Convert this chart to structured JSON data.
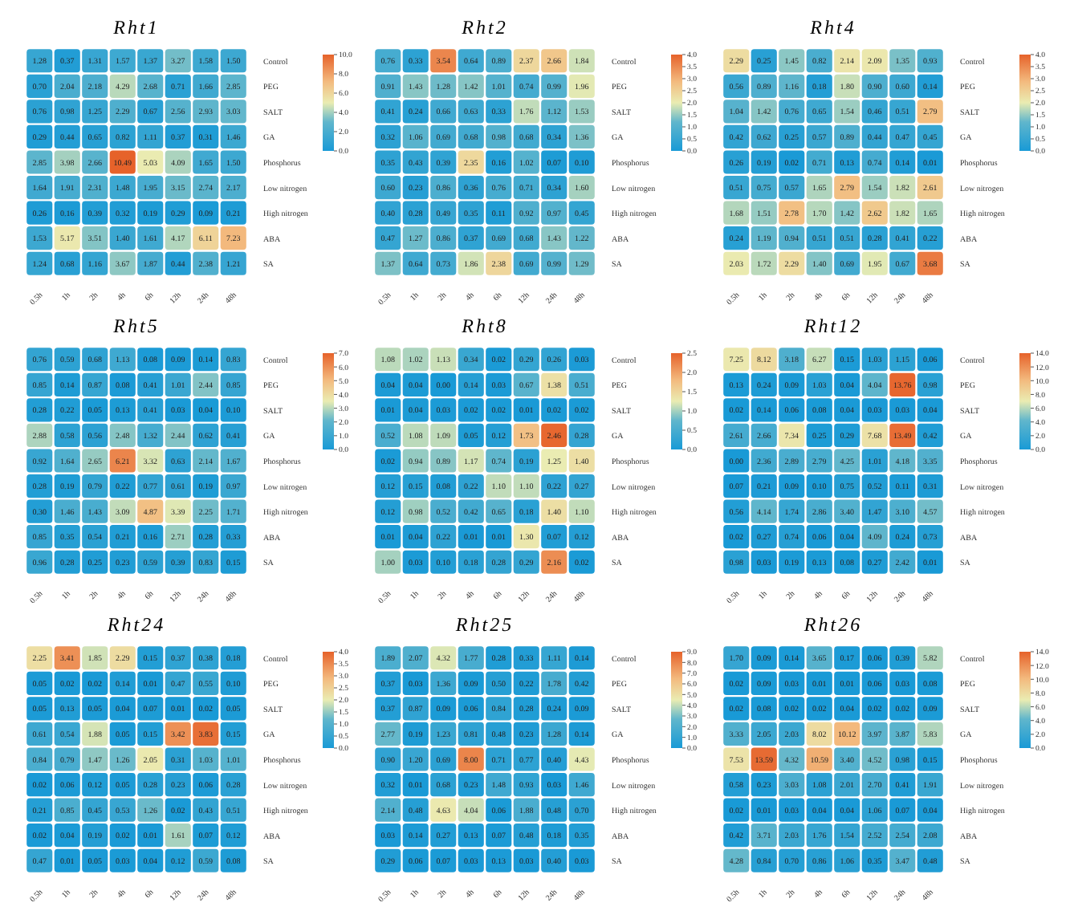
{
  "chart_data": [
    {
      "type": "heatmap",
      "title": "Rht1",
      "categories": [
        "0.5h",
        "1h",
        "2h",
        "4h",
        "6h",
        "12h",
        "24h",
        "48h"
      ],
      "y_categories": [
        "Control",
        "PEG",
        "SALT",
        "GA",
        "Phosphorus",
        "Low nitrogen",
        "High nitrogen",
        "ABA",
        "SA"
      ],
      "cells": [
        [
          1.28,
          0.37,
          1.31,
          1.57,
          1.37,
          3.27,
          1.58,
          1.5
        ],
        [
          0.7,
          2.04,
          2.18,
          4.29,
          2.68,
          0.71,
          1.66,
          2.85
        ],
        [
          0.76,
          0.98,
          1.25,
          2.29,
          0.67,
          2.56,
          2.93,
          3.03
        ],
        [
          0.29,
          0.44,
          0.65,
          0.82,
          1.11,
          0.37,
          0.31,
          1.46
        ],
        [
          2.85,
          3.98,
          2.66,
          10.49,
          5.03,
          4.09,
          1.65,
          1.5
        ],
        [
          1.64,
          1.91,
          2.31,
          1.48,
          1.95,
          3.15,
          2.74,
          2.17
        ],
        [
          0.26,
          0.16,
          0.39,
          0.32,
          0.19,
          0.29,
          0.09,
          0.21
        ],
        [
          1.53,
          5.17,
          3.51,
          1.4,
          1.61,
          4.17,
          6.11,
          7.23
        ],
        [
          1.24,
          0.68,
          1.16,
          3.67,
          1.87,
          0.44,
          2.38,
          1.21
        ]
      ],
      "cell_labels": [
        [
          "1.28",
          "0.37",
          "1.31",
          "1.57",
          "1.37",
          "3.27",
          "1.58",
          "1.50"
        ],
        [
          "0.70",
          "2.04",
          "2.18",
          "4.29",
          "2.68",
          "0.71",
          "1.66",
          "2.85"
        ],
        [
          "0.76",
          "0.98",
          "1.25",
          "2.29",
          "0.67",
          "2.56",
          "2.93",
          "3.03"
        ],
        [
          "0.29",
          "0.44",
          "0.65",
          "0.82",
          "1.11",
          "0.37",
          "0.31",
          "1.46"
        ],
        [
          "2.85",
          "3.98",
          "2.66",
          "10.49",
          "5.03",
          "4.09",
          "1.65",
          "1.50"
        ],
        [
          "1.64",
          "1.91",
          "2.31",
          "1.48",
          "1.95",
          "3.15",
          "2.74",
          "2.17"
        ],
        [
          "0.26",
          "0.16",
          "0.39",
          "0.32",
          "0.19",
          "0.29",
          "0.09",
          "0.21"
        ],
        [
          "1.53",
          "5.17",
          "3.51",
          "1.40",
          "1.61",
          "4.17",
          "6.11",
          "7.23"
        ],
        [
          "1.24",
          "0.68",
          "1.16",
          "3.67",
          "1.87",
          "0.44",
          "2.38",
          "1.21"
        ]
      ],
      "clim": [
        0,
        10
      ],
      "cticks": [
        {
          "value": 0,
          "label": "0.0"
        },
        {
          "value": 2,
          "label": "2.0"
        },
        {
          "value": 4,
          "label": "4.0"
        },
        {
          "value": 6,
          "label": "6.0"
        },
        {
          "value": 8,
          "label": "8.0"
        },
        {
          "value": 10,
          "label": "10.0"
        }
      ]
    },
    {
      "type": "heatmap",
      "title": "Rht2",
      "categories": [
        "0.5h",
        "1h",
        "2h",
        "4h",
        "6h",
        "12h",
        "24h",
        "48h"
      ],
      "y_categories": [
        "Control",
        "PEG",
        "SALT",
        "GA",
        "Phosphorus",
        "Low nitrogen",
        "High nitrogen",
        "ABA",
        "SA"
      ],
      "cells": [
        [
          0.76,
          0.33,
          3.54,
          0.64,
          0.89,
          2.37,
          2.66,
          1.84
        ],
        [
          0.91,
          1.43,
          1.28,
          1.42,
          1.01,
          0.74,
          0.99,
          1.96
        ],
        [
          0.41,
          0.24,
          0.66,
          0.63,
          0.33,
          1.76,
          1.12,
          1.53
        ],
        [
          0.32,
          1.06,
          0.69,
          0.68,
          0.98,
          0.68,
          0.34,
          1.36
        ],
        [
          0.35,
          0.43,
          0.39,
          2.35,
          0.16,
          1.02,
          0.07,
          0.1
        ],
        [
          0.6,
          0.23,
          0.86,
          0.36,
          0.76,
          0.71,
          0.34,
          1.6
        ],
        [
          0.4,
          0.28,
          0.49,
          0.35,
          0.11,
          0.92,
          0.97,
          0.45
        ],
        [
          0.47,
          1.27,
          0.86,
          0.37,
          0.69,
          0.68,
          1.43,
          1.22
        ],
        [
          1.37,
          0.64,
          0.73,
          1.86,
          2.38,
          0.69,
          0.99,
          1.29
        ]
      ],
      "cell_labels": [
        [
          "0.76",
          "0.33",
          "3.54",
          "0.64",
          "0.89",
          "2.37",
          "2.66",
          "1.84"
        ],
        [
          "0.91",
          "1.43",
          "1.28",
          "1.42",
          "1.01",
          "0.74",
          "0.99",
          "1.96"
        ],
        [
          "0.41",
          "0.24",
          "0.66",
          "0.63",
          "0.33",
          "1.76",
          "1.12",
          "1.53"
        ],
        [
          "0.32",
          "1.06",
          "0.69",
          "0.68",
          "0.98",
          "0.68",
          "0.34",
          "1.36"
        ],
        [
          "0.35",
          "0.43",
          "0.39",
          "2.35",
          "0.16",
          "1.02",
          "0.07",
          "0.10"
        ],
        [
          "0.60",
          "0.23",
          "0.86",
          "0.36",
          "0.76",
          "0.71",
          "0.34",
          "1.60"
        ],
        [
          "0.40",
          "0.28",
          "0.49",
          "0.35",
          "0.11",
          "0.92",
          "0.97",
          "0.45"
        ],
        [
          "0.47",
          "1.27",
          "0.86",
          "0.37",
          "0.69",
          "0.68",
          "1.43",
          "1.22"
        ],
        [
          "1.37",
          "0.64",
          "0.73",
          "1.86",
          "2.38",
          "0.69",
          "0.99",
          "1.29"
        ]
      ],
      "clim": [
        0,
        4
      ],
      "cticks": [
        {
          "value": 0,
          "label": "0.0"
        },
        {
          "value": 0.5,
          "label": "0.5"
        },
        {
          "value": 1,
          "label": "1.0"
        },
        {
          "value": 1.5,
          "label": "1.5"
        },
        {
          "value": 2,
          "label": "2.0"
        },
        {
          "value": 2.5,
          "label": "2.5"
        },
        {
          "value": 3,
          "label": "3.0"
        },
        {
          "value": 3.5,
          "label": "3.5"
        },
        {
          "value": 4,
          "label": "4.0"
        }
      ]
    },
    {
      "type": "heatmap",
      "title": "Rht4",
      "categories": [
        "0.5h",
        "1h",
        "2h",
        "4h",
        "6h",
        "12h",
        "24h",
        "48h"
      ],
      "y_categories": [
        "Control",
        "PEG",
        "SALT",
        "GA",
        "Phosphorus",
        "Low nitrogen",
        "High nitrogen",
        "ABA",
        "SA"
      ],
      "cells": [
        [
          2.29,
          0.25,
          1.45,
          0.82,
          2.14,
          2.09,
          1.35,
          0.93
        ],
        [
          0.56,
          0.89,
          1.16,
          0.18,
          1.8,
          0.9,
          0.6,
          0.14
        ],
        [
          1.04,
          1.42,
          0.76,
          0.65,
          1.54,
          0.46,
          0.51,
          2.79
        ],
        [
          0.42,
          0.62,
          0.25,
          0.57,
          0.89,
          0.44,
          0.47,
          0.45
        ],
        [
          0.26,
          0.19,
          0.02,
          0.71,
          0.13,
          0.74,
          0.14,
          0.01
        ],
        [
          0.51,
          0.75,
          0.57,
          1.65,
          2.79,
          1.54,
          1.82,
          2.61
        ],
        [
          1.68,
          1.51,
          2.78,
          1.7,
          1.42,
          2.62,
          1.82,
          1.65
        ],
        [
          0.24,
          1.19,
          0.94,
          0.51,
          0.51,
          0.28,
          0.41,
          0.22
        ],
        [
          2.03,
          1.72,
          2.29,
          1.4,
          0.69,
          1.95,
          0.67,
          3.68
        ]
      ],
      "cell_labels": [
        [
          "2.29",
          "0.25",
          "1.45",
          "0.82",
          "2.14",
          "2.09",
          "1.35",
          "0.93"
        ],
        [
          "0.56",
          "0.89",
          "1.16",
          "0.18",
          "1.80",
          "0.90",
          "0.60",
          "0.14"
        ],
        [
          "1.04",
          "1.42",
          "0.76",
          "0.65",
          "1.54",
          "0.46",
          "0.51",
          "2.79"
        ],
        [
          "0.42",
          "0.62",
          "0.25",
          "0.57",
          "0.89",
          "0.44",
          "0.47",
          "0.45"
        ],
        [
          "0.26",
          "0.19",
          "0.02",
          "0.71",
          "0.13",
          "0.74",
          "0.14",
          "0.01"
        ],
        [
          "0.51",
          "0.75",
          "0.57",
          "1.65",
          "2.79",
          "1.54",
          "1.82",
          "2.61"
        ],
        [
          "1.68",
          "1.51",
          "2.78",
          "1.70",
          "1.42",
          "2.62",
          "1.82",
          "1.65"
        ],
        [
          "0.24",
          "1.19",
          "0.94",
          "0.51",
          "0.51",
          "0.28",
          "0.41",
          "0.22"
        ],
        [
          "2.03",
          "1.72",
          "2.29",
          "1.40",
          "0.69",
          "1.95",
          "0.67",
          "3.68"
        ]
      ],
      "clim": [
        0,
        4
      ],
      "cticks": [
        {
          "value": 0,
          "label": "0.0"
        },
        {
          "value": 0.5,
          "label": "0.5"
        },
        {
          "value": 1,
          "label": "1.0"
        },
        {
          "value": 1.5,
          "label": "1.5"
        },
        {
          "value": 2,
          "label": "2.0"
        },
        {
          "value": 2.5,
          "label": "2.5"
        },
        {
          "value": 3,
          "label": "3.0"
        },
        {
          "value": 3.5,
          "label": "3.5"
        },
        {
          "value": 4,
          "label": "4.0"
        }
      ]
    },
    {
      "type": "heatmap",
      "title": "Rht5",
      "categories": [
        "0.5h",
        "1h",
        "2h",
        "4h",
        "6h",
        "12h",
        "24h",
        "48h"
      ],
      "y_categories": [
        "Control",
        "PEG",
        "SALT",
        "GA",
        "Phosphorus",
        "Low nitrogen",
        "High nitrogen",
        "ABA",
        "SA"
      ],
      "cells": [
        [
          0.76,
          0.59,
          0.68,
          1.13,
          0.08,
          0.09,
          0.14,
          0.83
        ],
        [
          0.85,
          0.14,
          0.87,
          0.08,
          0.41,
          1.01,
          2.44,
          0.85
        ],
        [
          0.28,
          0.22,
          0.05,
          0.13,
          0.41,
          0.03,
          0.04,
          0.1
        ],
        [
          2.88,
          0.58,
          0.56,
          2.48,
          1.32,
          2.44,
          0.62,
          0.41
        ],
        [
          0.92,
          1.64,
          2.65,
          6.21,
          3.32,
          0.63,
          2.14,
          1.67
        ],
        [
          0.28,
          0.19,
          0.79,
          0.22,
          0.77,
          0.61,
          0.19,
          0.97
        ],
        [
          0.3,
          1.46,
          1.43,
          3.09,
          4.87,
          3.39,
          2.25,
          1.71
        ],
        [
          0.85,
          0.35,
          0.54,
          0.21,
          0.16,
          2.71,
          0.28,
          0.33
        ],
        [
          0.96,
          0.28,
          0.25,
          0.23,
          0.59,
          0.39,
          0.83,
          0.15
        ]
      ],
      "cell_labels": [
        [
          "0.76",
          "0.59",
          "0.68",
          "1.13",
          "0.08",
          "0.09",
          "0.14",
          "0.83"
        ],
        [
          "0.85",
          "0.14",
          "0.87",
          "0.08",
          "0.41",
          "1.01",
          "2.44",
          "0.85"
        ],
        [
          "0.28",
          "0.22",
          "0.05",
          "0.13",
          "0.41",
          "0.03",
          "0.04",
          "0.10"
        ],
        [
          "2.88",
          "0.58",
          "0.56",
          "2.48",
          "1.32",
          "2.44",
          "0.62",
          "0.41"
        ],
        [
          "0.92",
          "1.64",
          "2.65",
          "6.21",
          "3.32",
          "0.63",
          "2.14",
          "1.67"
        ],
        [
          "0.28",
          "0.19",
          "0.79",
          "0.22",
          "0.77",
          "0.61",
          "0.19",
          "0.97"
        ],
        [
          "0.30",
          "1.46",
          "1.43",
          "3.09",
          "4.87",
          "3.39",
          "2.25",
          "1.71"
        ],
        [
          "0.85",
          "0.35",
          "0.54",
          "0.21",
          "0.16",
          "2.71",
          "0.28",
          "0.33"
        ],
        [
          "0.96",
          "0.28",
          "0.25",
          "0.23",
          "0.59",
          "0.39",
          "0.83",
          "0.15"
        ]
      ],
      "clim": [
        0,
        7
      ],
      "cticks": [
        {
          "value": 0,
          "label": "0.0"
        },
        {
          "value": 1,
          "label": "1.0"
        },
        {
          "value": 2,
          "label": "2.0"
        },
        {
          "value": 3,
          "label": "3.0"
        },
        {
          "value": 4,
          "label": "4.0"
        },
        {
          "value": 5,
          "label": "5.0"
        },
        {
          "value": 6,
          "label": "6.0"
        },
        {
          "value": 7,
          "label": "7.0"
        }
      ]
    },
    {
      "type": "heatmap",
      "title": "Rht8",
      "categories": [
        "0.5h",
        "1h",
        "2h",
        "4h",
        "6h",
        "12h",
        "24h",
        "48h"
      ],
      "y_categories": [
        "Control",
        "PEG",
        "SALT",
        "GA",
        "Phosphorus",
        "Low nitrogen",
        "High nitrogen",
        "ABA",
        "SA"
      ],
      "cells": [
        [
          1.08,
          1.02,
          1.13,
          0.34,
          0.02,
          0.29,
          0.26,
          0.03
        ],
        [
          0.04,
          0.04,
          0.0,
          0.14,
          0.03,
          0.67,
          1.38,
          0.51
        ],
        [
          0.01,
          0.04,
          0.03,
          0.02,
          0.02,
          0.01,
          0.02,
          0.02
        ],
        [
          0.52,
          1.08,
          1.09,
          0.05,
          0.12,
          1.73,
          2.46,
          0.28
        ],
        [
          0.02,
          0.94,
          0.89,
          1.17,
          0.74,
          0.19,
          1.25,
          1.4
        ],
        [
          0.12,
          0.15,
          0.08,
          0.22,
          1.1,
          1.1,
          0.22,
          0.27
        ],
        [
          0.12,
          0.98,
          0.52,
          0.42,
          0.65,
          0.18,
          1.4,
          1.1
        ],
        [
          0.01,
          0.04,
          0.22,
          0.01,
          0.01,
          1.3,
          0.07,
          0.12
        ],
        [
          1.0,
          0.03,
          0.1,
          0.18,
          0.28,
          0.29,
          2.16,
          0.02
        ]
      ],
      "cell_labels": [
        [
          "1.08",
          "1.02",
          "1.13",
          "0.34",
          "0.02",
          "0.29",
          "0.26",
          "0.03"
        ],
        [
          "0.04",
          "0.04",
          "0.00",
          "0.14",
          "0.03",
          "0.67",
          "1.38",
          "0.51"
        ],
        [
          "0.01",
          "0.04",
          "0.03",
          "0.02",
          "0.02",
          "0.01",
          "0.02",
          "0.02"
        ],
        [
          "0.52",
          "1.08",
          "1.09",
          "0.05",
          "0.12",
          "1.73",
          "2.46",
          "0.28"
        ],
        [
          "0.02",
          "0.94",
          "0.89",
          "1.17",
          "0.74",
          "0.19",
          "1.25",
          "1.40"
        ],
        [
          "0.12",
          "0.15",
          "0.08",
          "0.22",
          "1.10",
          "1.10",
          "0.22",
          "0.27"
        ],
        [
          "0.12",
          "0.98",
          "0.52",
          "0.42",
          "0.65",
          "0.18",
          "1.40",
          "1.10"
        ],
        [
          "0.01",
          "0.04",
          "0.22",
          "0.01",
          "0.01",
          "1.30",
          "0.07",
          "0.12"
        ],
        [
          "1.00",
          "0.03",
          "0.10",
          "0.18",
          "0.28",
          "0.29",
          "2.16",
          "0.02"
        ]
      ],
      "clim": [
        0,
        2.5
      ],
      "cticks": [
        {
          "value": 0,
          "label": "0.0"
        },
        {
          "value": 0.5,
          "label": "0.5"
        },
        {
          "value": 1,
          "label": "1.0"
        },
        {
          "value": 1.5,
          "label": "1.5"
        },
        {
          "value": 2,
          "label": "2.0"
        },
        {
          "value": 2.5,
          "label": "2.5"
        }
      ]
    },
    {
      "type": "heatmap",
      "title": "Rht12",
      "categories": [
        "0.5h",
        "1h",
        "2h",
        "4h",
        "6h",
        "12h",
        "24h",
        "48h"
      ],
      "y_categories": [
        "Control",
        "PEG",
        "SALT",
        "GA",
        "Phosphorus",
        "Low nitrogen",
        "High nitrogen",
        "ABA",
        "SA"
      ],
      "cells": [
        [
          7.25,
          8.12,
          3.18,
          6.27,
          0.15,
          1.03,
          1.15,
          0.06
        ],
        [
          0.13,
          0.24,
          0.09,
          1.03,
          0.04,
          4.04,
          13.76,
          0.98
        ],
        [
          0.02,
          0.14,
          0.06,
          0.08,
          0.04,
          0.03,
          0.03,
          0.04
        ],
        [
          2.61,
          2.66,
          7.34,
          0.25,
          0.29,
          7.68,
          13.49,
          0.42
        ],
        [
          0.0,
          2.36,
          2.89,
          2.79,
          4.25,
          1.01,
          4.18,
          3.35
        ],
        [
          0.07,
          0.21,
          0.09,
          0.1,
          0.75,
          0.52,
          0.11,
          0.31
        ],
        [
          0.56,
          4.14,
          1.74,
          2.86,
          3.4,
          1.47,
          3.1,
          4.57
        ],
        [
          0.02,
          0.27,
          0.74,
          0.06,
          0.04,
          4.09,
          0.24,
          0.73
        ],
        [
          0.98,
          0.03,
          0.19,
          0.13,
          0.08,
          0.27,
          2.42,
          0.01
        ]
      ],
      "cell_labels": [
        [
          "7.25",
          "8.12",
          "3.18",
          "6.27",
          "0.15",
          "1.03",
          "1.15",
          "0.06"
        ],
        [
          "0.13",
          "0.24",
          "0.09",
          "1.03",
          "0.04",
          "4.04",
          "13.76",
          "0.98"
        ],
        [
          "0.02",
          "0.14",
          "0.06",
          "0.08",
          "0.04",
          "0.03",
          "0.03",
          "0.04"
        ],
        [
          "2.61",
          "2.66",
          "7.34",
          "0.25",
          "0.29",
          "7.68",
          "13.49",
          "0.42"
        ],
        [
          "0.00",
          "2.36",
          "2.89",
          "2.79",
          "4.25",
          "1.01",
          "4.18",
          "3.35"
        ],
        [
          "0.07",
          "0.21",
          "0.09",
          "0.10",
          "0.75",
          "0.52",
          "0.11",
          "0.31"
        ],
        [
          "0.56",
          "4.14",
          "1.74",
          "2.86",
          "3.40",
          "1.47",
          "3.10",
          "4.57"
        ],
        [
          "0.02",
          "0.27",
          "0.74",
          "0.06",
          "0.04",
          "4.09",
          "0.24",
          "0.73"
        ],
        [
          "0.98",
          "0.03",
          "0.19",
          "0.13",
          "0.08",
          "0.27",
          "2.42",
          "0.01"
        ]
      ],
      "clim": [
        0,
        14
      ],
      "cticks": [
        {
          "value": 0,
          "label": "0.0"
        },
        {
          "value": 2,
          "label": "2.0"
        },
        {
          "value": 4,
          "label": "4.0"
        },
        {
          "value": 6,
          "label": "6.0"
        },
        {
          "value": 8,
          "label": "8.0"
        },
        {
          "value": 10,
          "label": "10.0"
        },
        {
          "value": 12,
          "label": "12.0"
        },
        {
          "value": 14,
          "label": "14.0"
        }
      ]
    },
    {
      "type": "heatmap",
      "title": "Rht24",
      "categories": [
        "0.5h",
        "1h",
        "2h",
        "4h",
        "6h",
        "12h",
        "24h",
        "48h"
      ],
      "y_categories": [
        "Control",
        "PEG",
        "SALT",
        "GA",
        "Phosphorus",
        "Low nitrogen",
        "High nitrogen",
        "ABA",
        "SA"
      ],
      "cells": [
        [
          2.25,
          3.41,
          1.85,
          2.29,
          0.15,
          0.37,
          0.38,
          0.18
        ],
        [
          0.05,
          0.02,
          0.02,
          0.14,
          0.01,
          0.47,
          0.55,
          0.1
        ],
        [
          0.05,
          0.13,
          0.05,
          0.04,
          0.07,
          0.01,
          0.02,
          0.05
        ],
        [
          0.61,
          0.54,
          1.88,
          0.05,
          0.15,
          3.42,
          3.83,
          0.15
        ],
        [
          0.84,
          0.79,
          1.47,
          1.26,
          2.05,
          0.31,
          1.03,
          1.01
        ],
        [
          0.02,
          0.06,
          0.12,
          0.05,
          0.28,
          0.23,
          0.06,
          0.28
        ],
        [
          0.21,
          0.85,
          0.45,
          0.53,
          1.26,
          0.02,
          0.43,
          0.51
        ],
        [
          0.02,
          0.04,
          0.19,
          0.02,
          0.01,
          1.61,
          0.07,
          0.12
        ],
        [
          0.47,
          0.01,
          0.05,
          0.03,
          0.04,
          0.12,
          0.59,
          0.08
        ]
      ],
      "cell_labels": [
        [
          "2.25",
          "3.41",
          "1.85",
          "2.29",
          "0.15",
          "0.37",
          "0.38",
          "0.18"
        ],
        [
          "0.05",
          "0.02",
          "0.02",
          "0.14",
          "0.01",
          "0.47",
          "0.55",
          "0.10"
        ],
        [
          "0.05",
          "0.13",
          "0.05",
          "0.04",
          "0.07",
          "0.01",
          "0.02",
          "0.05"
        ],
        [
          "0.61",
          "0.54",
          "1.88",
          "0.05",
          "0.15",
          "3.42",
          "3.83",
          "0.15"
        ],
        [
          "0.84",
          "0.79",
          "1.47",
          "1.26",
          "2.05",
          "0.31",
          "1.03",
          "1.01"
        ],
        [
          "0.02",
          "0.06",
          "0.12",
          "0.05",
          "0.28",
          "0.23",
          "0.06",
          "0.28"
        ],
        [
          "0.21",
          "0.85",
          "0.45",
          "0.53",
          "1.26",
          "0.02",
          "0.43",
          "0.51"
        ],
        [
          "0.02",
          "0.04",
          "0.19",
          "0.02",
          "0.01",
          "1.61",
          "0.07",
          "0.12"
        ],
        [
          "0.47",
          "0.01",
          "0.05",
          "0.03",
          "0.04",
          "0.12",
          "0.59",
          "0.08"
        ]
      ],
      "clim": [
        0,
        4
      ],
      "cticks": [
        {
          "value": 0,
          "label": "0.0"
        },
        {
          "value": 0.5,
          "label": "0.5"
        },
        {
          "value": 1,
          "label": "1.0"
        },
        {
          "value": 1.5,
          "label": "1.5"
        },
        {
          "value": 2,
          "label": "2.0"
        },
        {
          "value": 2.5,
          "label": "2.5"
        },
        {
          "value": 3,
          "label": "3.0"
        },
        {
          "value": 3.5,
          "label": "3.5"
        },
        {
          "value": 4,
          "label": "4.0"
        }
      ]
    },
    {
      "type": "heatmap",
      "title": "Rht25",
      "categories": [
        "0.5h",
        "1h",
        "2h",
        "4h",
        "6h",
        "12h",
        "24h",
        "48h"
      ],
      "y_categories": [
        "Control",
        "PEG",
        "SALT",
        "GA",
        "Phosphorus",
        "Low nitrogen",
        "High nitrogen",
        "ABA",
        "SA"
      ],
      "cells": [
        [
          1.89,
          2.07,
          4.32,
          1.77,
          0.28,
          0.33,
          1.11,
          0.14
        ],
        [
          0.37,
          0.03,
          1.36,
          0.09,
          0.5,
          0.22,
          1.78,
          0.42
        ],
        [
          0.37,
          0.87,
          0.09,
          0.06,
          0.84,
          0.28,
          0.24,
          0.09
        ],
        [
          2.77,
          0.19,
          1.23,
          0.81,
          0.48,
          0.23,
          1.28,
          0.14
        ],
        [
          0.9,
          1.2,
          0.69,
          8.0,
          0.71,
          0.77,
          0.4,
          4.43
        ],
        [
          0.32,
          0.01,
          0.68,
          0.23,
          1.48,
          0.93,
          0.03,
          1.46
        ],
        [
          2.14,
          0.48,
          4.63,
          4.04,
          0.06,
          1.88,
          0.48,
          0.7
        ],
        [
          0.03,
          0.14,
          0.27,
          0.13,
          0.07,
          0.48,
          0.18,
          0.35
        ],
        [
          0.29,
          0.06,
          0.07,
          0.03,
          0.13,
          0.03,
          0.4,
          0.03
        ]
      ],
      "cell_labels": [
        [
          "1.89",
          "2.07",
          "4.32",
          "1.77",
          "0.28",
          "0.33",
          "1.11",
          "0.14"
        ],
        [
          "0.37",
          "0.03",
          "1.36",
          "0.09",
          "0.50",
          "0.22",
          "1.78",
          "0.42"
        ],
        [
          "0.37",
          "0.87",
          "0.09",
          "0.06",
          "0.84",
          "0.28",
          "0.24",
          "0.09"
        ],
        [
          "2.77",
          "0.19",
          "1.23",
          "0.81",
          "0.48",
          "0.23",
          "1.28",
          "0.14"
        ],
        [
          "0.90",
          "1.20",
          "0.69",
          "8.00",
          "0.71",
          "0.77",
          "0.40",
          "4.43"
        ],
        [
          "0.32",
          "0.01",
          "0.68",
          "0.23",
          "1.48",
          "0.93",
          "0.03",
          "1.46"
        ],
        [
          "2.14",
          "0.48",
          "4.63",
          "4.04",
          "0.06",
          "1.88",
          "0.48",
          "0.70"
        ],
        [
          "0.03",
          "0.14",
          "0.27",
          "0.13",
          "0.07",
          "0.48",
          "0.18",
          "0.35"
        ],
        [
          "0.29",
          "0.06",
          "0.07",
          "0.03",
          "0.13",
          "0.03",
          "0.40",
          "0.03"
        ]
      ],
      "clim": [
        0,
        9
      ],
      "cticks": [
        {
          "value": 0,
          "label": "0.0"
        },
        {
          "value": 1,
          "label": "1.0"
        },
        {
          "value": 2,
          "label": "2.0"
        },
        {
          "value": 3,
          "label": "3.0"
        },
        {
          "value": 4,
          "label": "4.0"
        },
        {
          "value": 5,
          "label": "5.0"
        },
        {
          "value": 6,
          "label": "6.0"
        },
        {
          "value": 7,
          "label": "7.0"
        },
        {
          "value": 8,
          "label": "8.0"
        },
        {
          "value": 9,
          "label": "9.0"
        }
      ]
    },
    {
      "type": "heatmap",
      "title": "Rht26",
      "categories": [
        "0.5h",
        "1h",
        "2h",
        "4h",
        "6h",
        "12h",
        "24h",
        "48h"
      ],
      "y_categories": [
        "Control",
        "PEG",
        "SALT",
        "GA",
        "Phosphorus",
        "Low nitrogen",
        "High nitrogen",
        "ABA",
        "SA"
      ],
      "cells": [
        [
          1.7,
          0.09,
          0.14,
          3.65,
          0.17,
          0.06,
          0.39,
          5.82
        ],
        [
          0.02,
          0.09,
          0.03,
          0.01,
          0.01,
          0.06,
          0.03,
          0.08
        ],
        [
          0.02,
          0.08,
          0.02,
          0.02,
          0.04,
          0.02,
          0.02,
          0.09
        ],
        [
          3.33,
          2.05,
          2.03,
          8.02,
          10.12,
          3.97,
          3.87,
          5.83
        ],
        [
          7.53,
          13.59,
          4.32,
          10.59,
          3.4,
          4.52,
          0.98,
          0.15
        ],
        [
          0.58,
          0.23,
          3.03,
          1.08,
          2.01,
          2.7,
          0.41,
          1.91
        ],
        [
          0.02,
          0.01,
          0.03,
          0.04,
          0.04,
          1.06,
          0.07,
          0.04
        ],
        [
          0.42,
          3.71,
          2.03,
          1.76,
          1.54,
          2.52,
          2.54,
          2.08
        ],
        [
          4.28,
          0.84,
          0.7,
          0.86,
          1.06,
          0.35,
          3.47,
          0.48
        ]
      ],
      "cell_labels": [
        [
          "1.70",
          "0.09",
          "0.14",
          "3.65",
          "0.17",
          "0.06",
          "0.39",
          "5.82"
        ],
        [
          "0.02",
          "0.09",
          "0.03",
          "0.01",
          "0.01",
          "0.06",
          "0.03",
          "0.08"
        ],
        [
          "0.02",
          "0.08",
          "0.02",
          "0.02",
          "0.04",
          "0.02",
          "0.02",
          "0.09"
        ],
        [
          "3.33",
          "2.05",
          "2.03",
          "8.02",
          "10.12",
          "3.97",
          "3.87",
          "5.83"
        ],
        [
          "7.53",
          "13.59",
          "4.32",
          "10.59",
          "3.40",
          "4.52",
          "0.98",
          "0.15"
        ],
        [
          "0.58",
          "0.23",
          "3.03",
          "1.08",
          "2.01",
          "2.70",
          "0.41",
          "1.91"
        ],
        [
          "0.02",
          "0.01",
          "0.03",
          "0.04",
          "0.04",
          "1.06",
          "0.07",
          "0.04"
        ],
        [
          "0.42",
          "3.71",
          "2.03",
          "1.76",
          "1.54",
          "2.52",
          "2.54",
          "2.08"
        ],
        [
          "4.28",
          "0.84",
          "0.70",
          "0.86",
          "1.06",
          "0.35",
          "3.47",
          "0.48"
        ]
      ],
      "clim": [
        0,
        14
      ],
      "cticks": [
        {
          "value": 0,
          "label": "0.0"
        },
        {
          "value": 2,
          "label": "2.0"
        },
        {
          "value": 4,
          "label": "4.0"
        },
        {
          "value": 6,
          "label": "6.0"
        },
        {
          "value": 8,
          "label": "8.0"
        },
        {
          "value": 10,
          "label": "10.0"
        },
        {
          "value": 12,
          "label": "12.0"
        },
        {
          "value": 14,
          "label": "14.0"
        }
      ]
    }
  ]
}
